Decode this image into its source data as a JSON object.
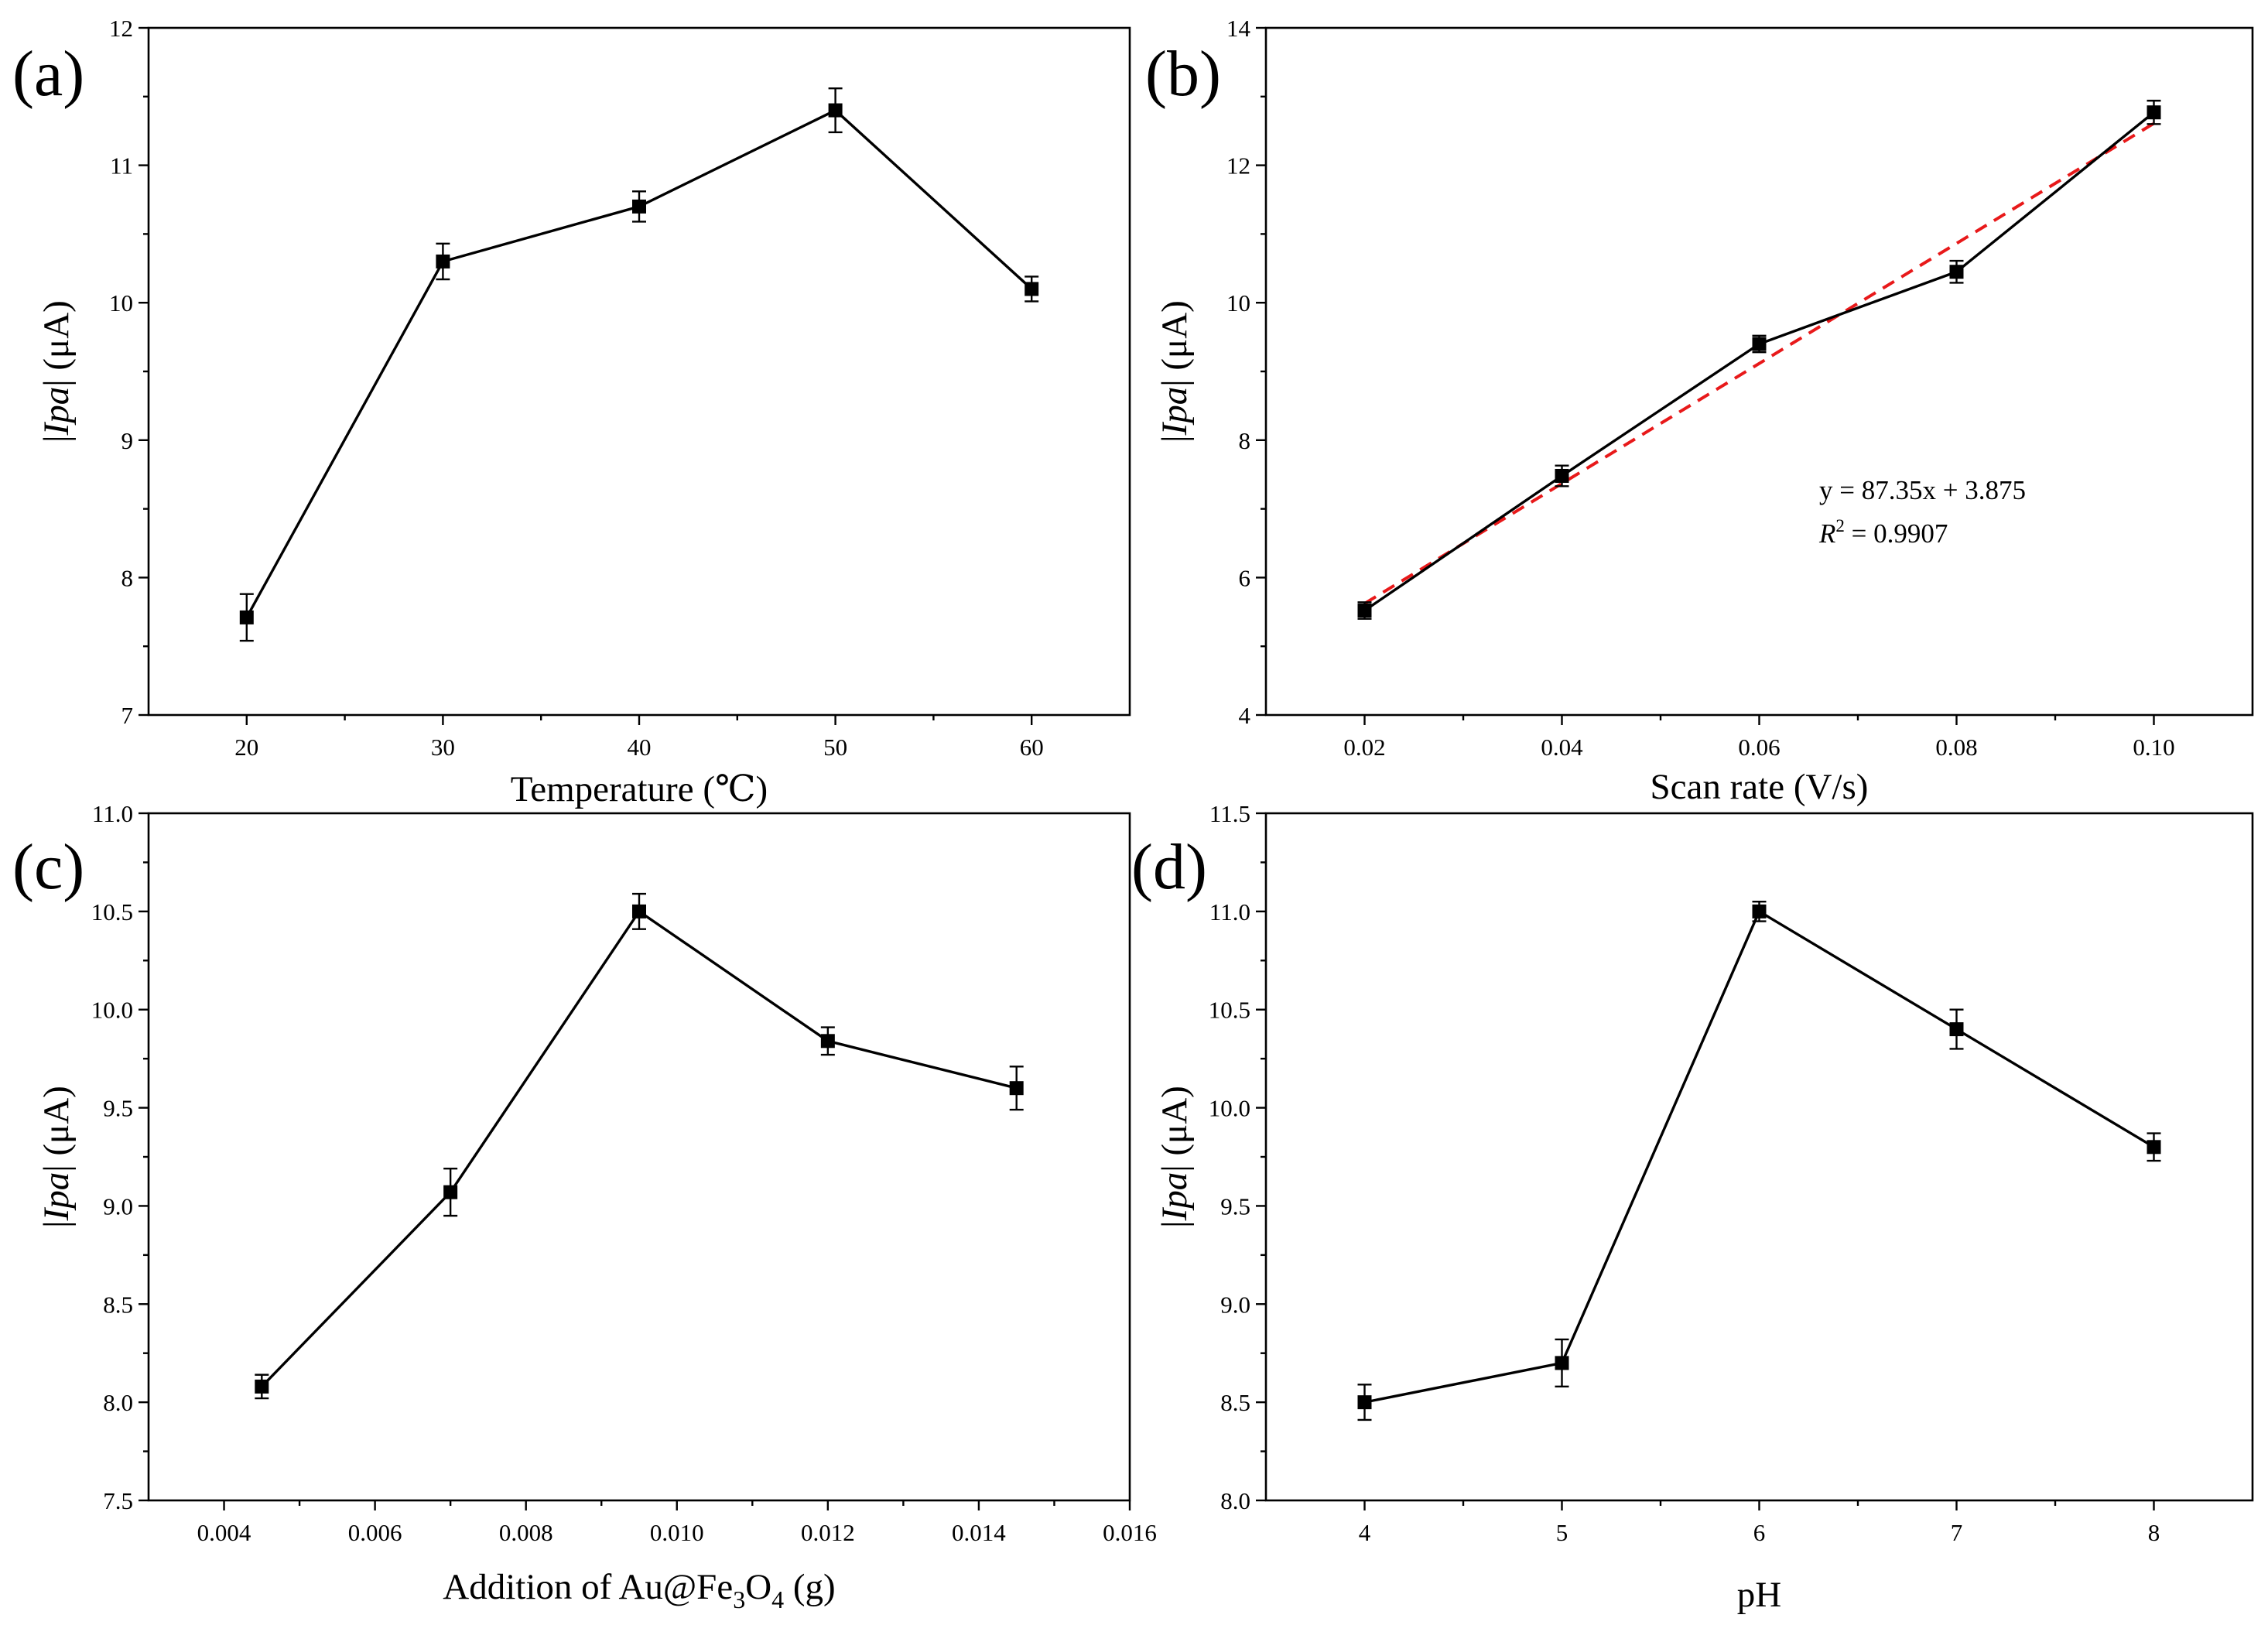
{
  "chart_data": [
    {
      "panel": "(a)",
      "type": "line",
      "xlabel": "Temperature (℃)",
      "ylabel_prefix": "|",
      "ylabel_italic": "Ipa",
      "ylabel_suffix": "| (μA)",
      "xlim": [
        15,
        65
      ],
      "ylim": [
        7,
        12
      ],
      "xticks": [
        20,
        30,
        40,
        50,
        60
      ],
      "xtick_labels": [
        "20",
        "30",
        "40",
        "50",
        "60"
      ],
      "yticks": [
        7,
        8,
        9,
        10,
        11,
        12
      ],
      "ytick_labels": [
        "7",
        "8",
        "9",
        "10",
        "11",
        "12"
      ],
      "x": [
        20,
        30,
        40,
        50,
        60
      ],
      "y": [
        7.71,
        10.3,
        10.7,
        11.4,
        10.1
      ],
      "error": [
        0.17,
        0.13,
        0.11,
        0.16,
        0.09
      ]
    },
    {
      "panel": "(b)",
      "type": "line",
      "xlabel": "Scan rate (V/s)",
      "ylabel_prefix": "|",
      "ylabel_italic": "Ipa",
      "ylabel_suffix": "| (μA)",
      "xlim": [
        0.01,
        0.11
      ],
      "ylim": [
        4,
        14
      ],
      "xticks": [
        0.02,
        0.04,
        0.06,
        0.08,
        0.1
      ],
      "xtick_labels": [
        "0.02",
        "0.04",
        "0.06",
        "0.08",
        "0.10"
      ],
      "yticks": [
        4,
        6,
        8,
        10,
        12,
        14
      ],
      "ytick_labels": [
        "4",
        "6",
        "8",
        "10",
        "12",
        "14"
      ],
      "x": [
        0.02,
        0.04,
        0.06,
        0.08,
        0.1
      ],
      "y": [
        5.52,
        7.48,
        9.4,
        10.45,
        12.77
      ],
      "error": [
        0.12,
        0.15,
        0.12,
        0.16,
        0.17
      ],
      "fit": {
        "slope": 87.35,
        "intercept": 3.875,
        "x_range": [
          0.02,
          0.1
        ],
        "color": "#e8191a"
      },
      "annotation_equation": "y = 87.35x + 3.875",
      "annotation_r2_symbol": "R",
      "annotation_r2_exp": "2",
      "annotation_r2_value": " = 0.9907"
    },
    {
      "panel": "(c)",
      "type": "line",
      "xlabel_parts": [
        "Addition of  Au@Fe",
        "3",
        "O",
        "4",
        " (g)"
      ],
      "ylabel_prefix": "|",
      "ylabel_italic": "Ipa",
      "ylabel_suffix": "| (μA)",
      "xlim": [
        0.003,
        0.016
      ],
      "ylim": [
        7.5,
        11.0
      ],
      "xticks": [
        0.004,
        0.006,
        0.008,
        0.01,
        0.012,
        0.014,
        0.016
      ],
      "xtick_labels": [
        "0.004",
        "0.006",
        "0.008",
        "0.010",
        "0.012",
        "0.014",
        "0.016"
      ],
      "yticks": [
        7.5,
        8.0,
        8.5,
        9.0,
        9.5,
        10.0,
        10.5,
        11.0
      ],
      "ytick_labels": [
        "7.5",
        "8.0",
        "8.5",
        "9.0",
        "9.5",
        "10.0",
        "10.5",
        "11.0"
      ],
      "x": [
        0.0045,
        0.007,
        0.0095,
        0.012,
        0.0145
      ],
      "y": [
        8.08,
        9.07,
        10.5,
        9.84,
        9.6
      ],
      "error": [
        0.06,
        0.12,
        0.09,
        0.07,
        0.11
      ]
    },
    {
      "panel": "(d)",
      "type": "line",
      "xlabel": "pH",
      "ylabel_prefix": "|",
      "ylabel_italic": "Ipa",
      "ylabel_suffix": "| (μA)",
      "xlim": [
        3.5,
        8.5
      ],
      "ylim": [
        8.0,
        11.5
      ],
      "xticks": [
        4,
        5,
        6,
        7,
        8
      ],
      "xtick_labels": [
        "4",
        "5",
        "6",
        "7",
        "8"
      ],
      "yticks": [
        8.0,
        8.5,
        9.0,
        9.5,
        10.0,
        10.5,
        11.0,
        11.5
      ],
      "ytick_labels": [
        "8.0",
        "8.5",
        "9.0",
        "9.5",
        "10.0",
        "10.5",
        "11.0",
        "11.5"
      ],
      "x": [
        4,
        5,
        6,
        7,
        8
      ],
      "y": [
        8.5,
        8.7,
        11.0,
        10.4,
        9.8
      ],
      "error": [
        0.09,
        0.12,
        0.05,
        0.1,
        0.07
      ]
    }
  ]
}
